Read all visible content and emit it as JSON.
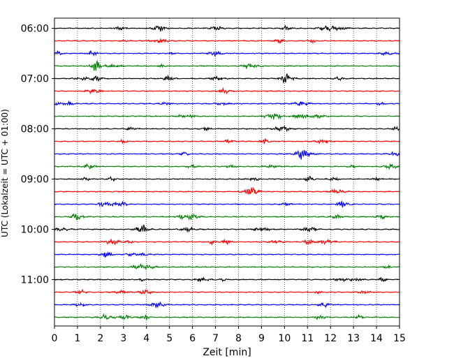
{
  "chart_data": {
    "type": "line",
    "title": "",
    "xlabel": "Zeit  [min]",
    "ylabel": "UTC (Lokalzeit = UTC + 01:00)",
    "xlim": [
      0,
      15
    ],
    "x_ticks": [
      "0",
      "1",
      "2",
      "3",
      "4",
      "5",
      "6",
      "7",
      "8",
      "9",
      "10",
      "11",
      "12",
      "13",
      "14",
      "15"
    ],
    "y_tick_labels": [
      "06:00",
      "07:00",
      "08:00",
      "09:00",
      "10:00",
      "11:00"
    ],
    "grid": {
      "x": "dotted vertical lines at each minute",
      "y": "none"
    },
    "trace_interval_minutes": 15,
    "trace_start": "06:00",
    "trace_count": 24,
    "trace_colors": [
      "#000000",
      "#ff0000",
      "#0000ff",
      "#008000"
    ],
    "signal": "seismogram noise, low amplitude with occasional small bursts"
  }
}
